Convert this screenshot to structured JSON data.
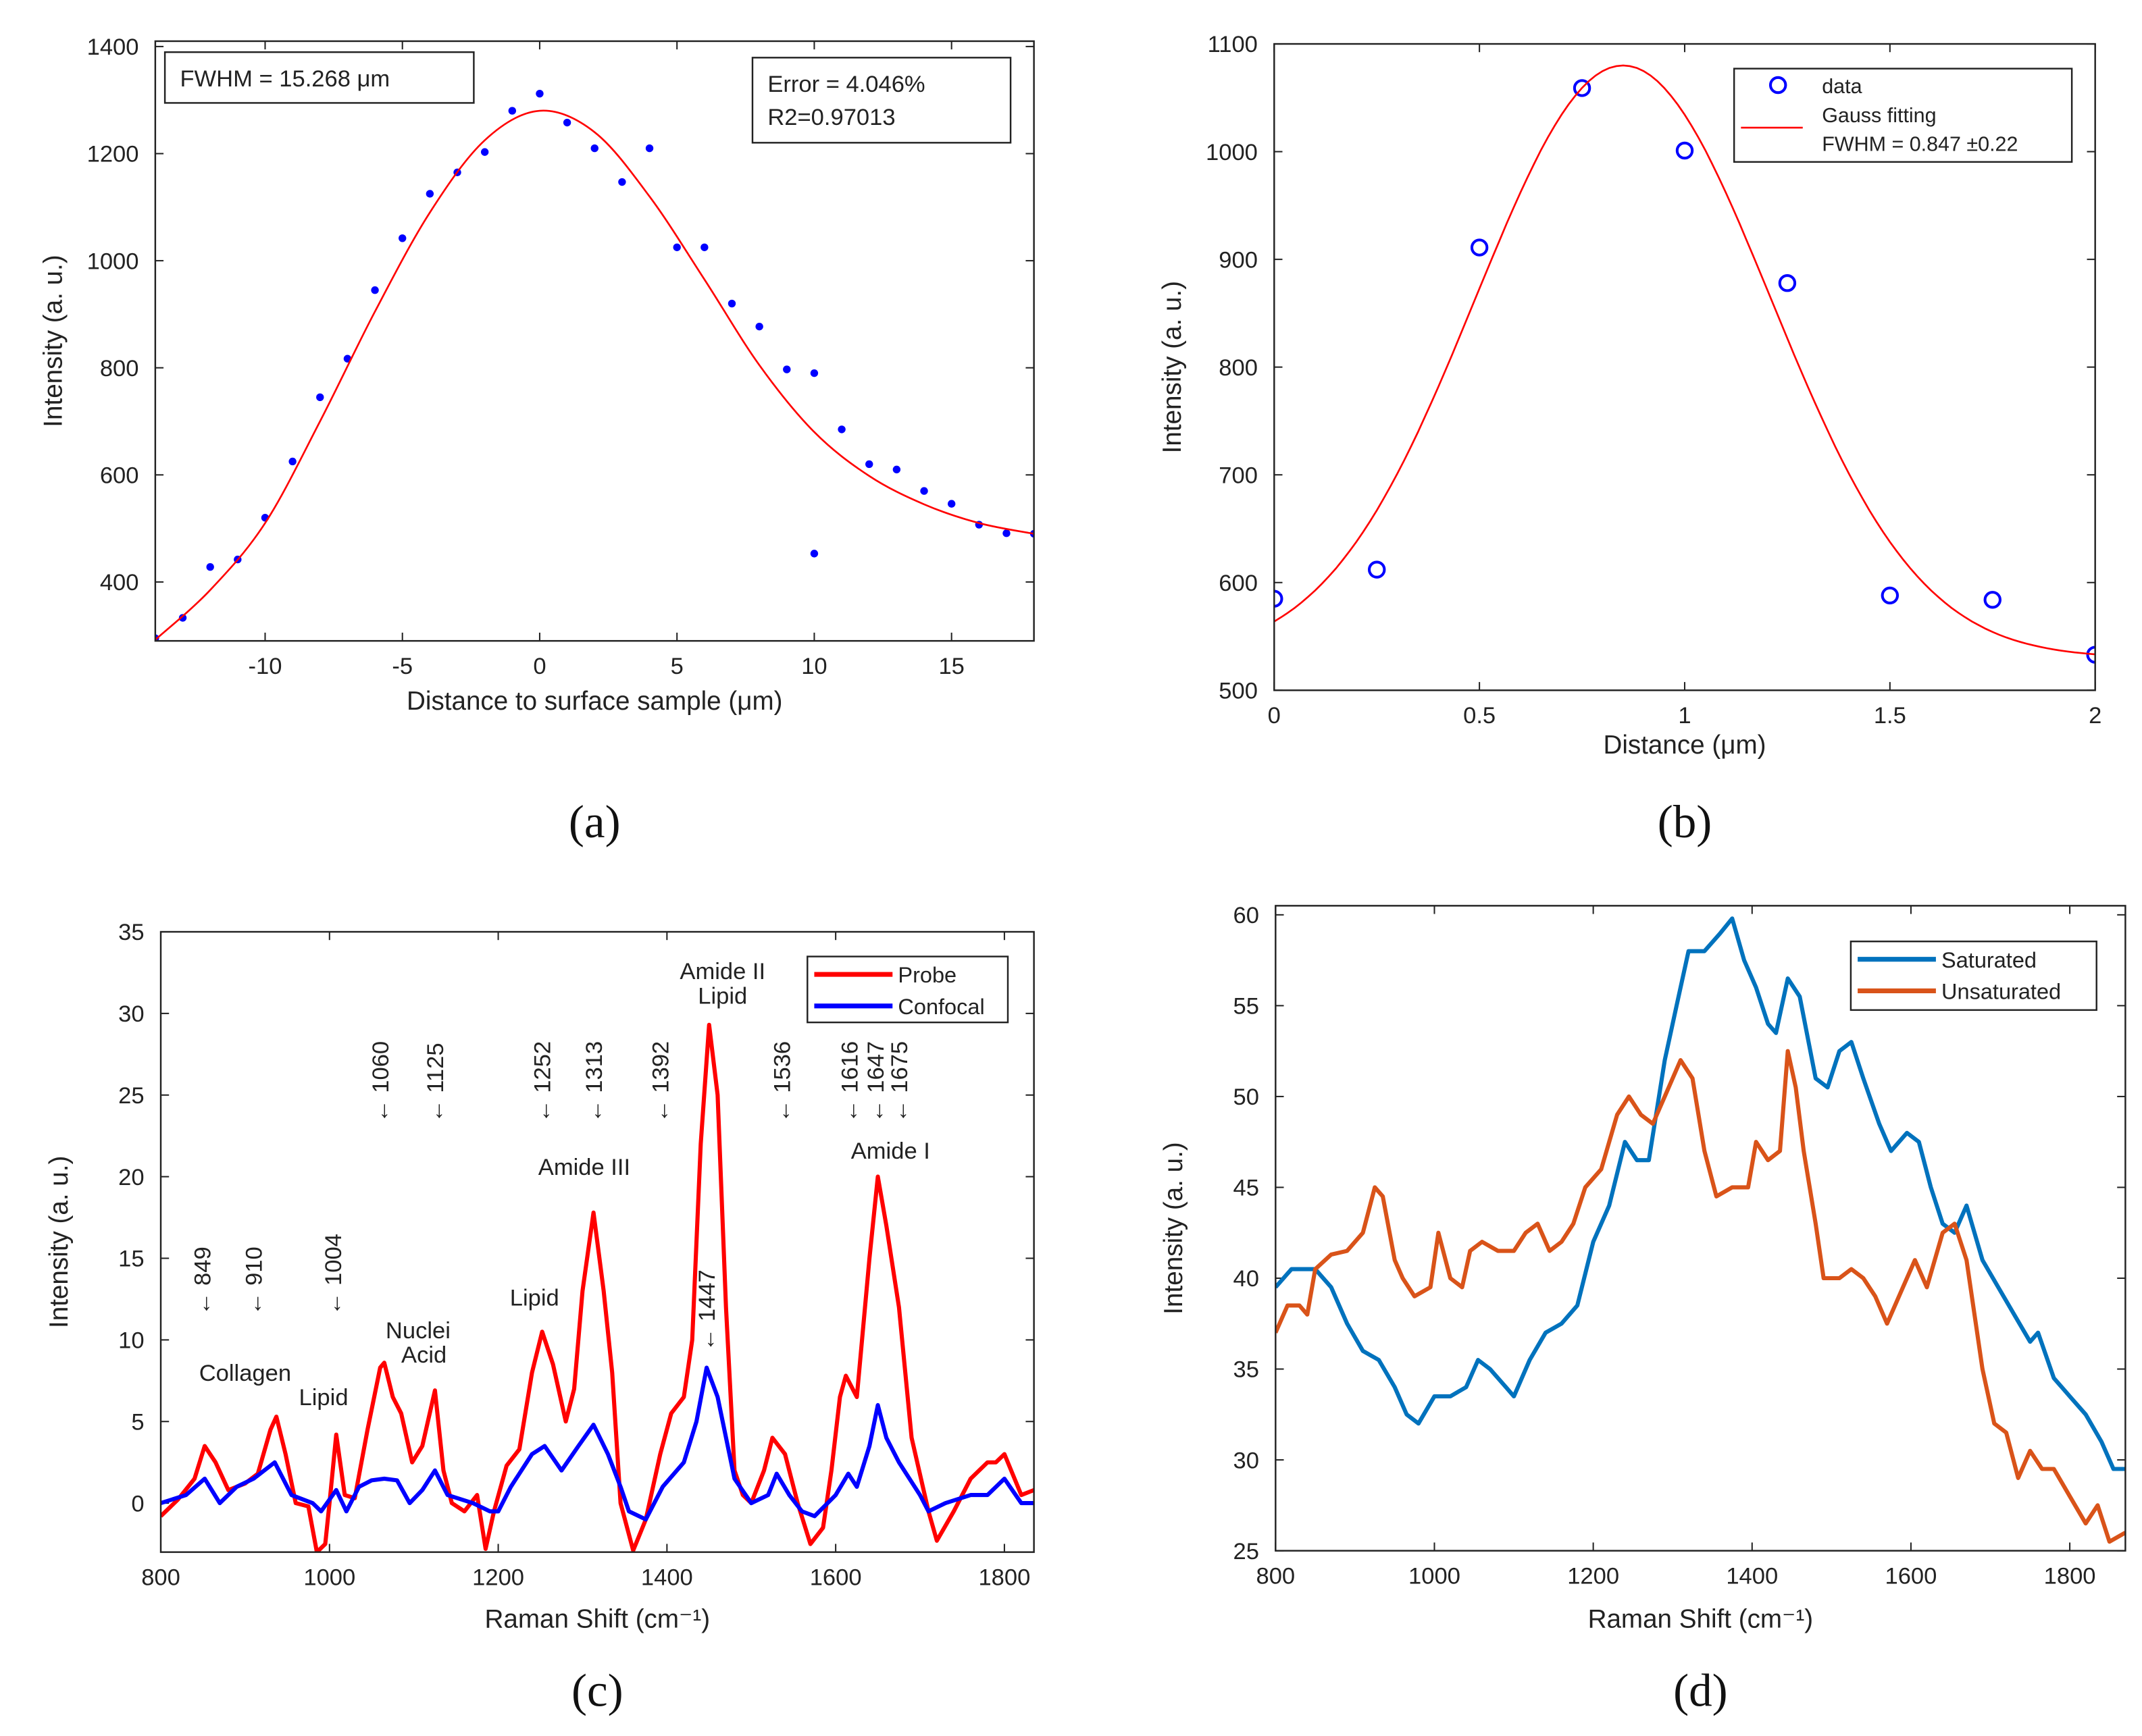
{
  "figure": {
    "panel_labels": [
      "(a)",
      "(b)",
      "(c)",
      "(d)"
    ]
  },
  "chart_data": [
    {
      "type": "scatter",
      "xlabel": "Distance to surface sample (μm)",
      "ylabel": "Intensity (a. u.)",
      "xlim": [
        -14,
        18
      ],
      "ylim": [
        290,
        1410
      ],
      "xticks": [
        -10,
        -5,
        0,
        5,
        10,
        15
      ],
      "yticks": [
        400,
        600,
        800,
        1000,
        1200,
        1400
      ],
      "series": [
        {
          "name": "data",
          "kind": "points",
          "color": "#0000ff",
          "x": [
            -14,
            -13,
            -12,
            -11,
            -10,
            -9,
            -8,
            -7,
            -6,
            -5,
            -4,
            -3,
            -2,
            -1,
            0,
            1,
            2,
            3,
            4,
            5,
            6,
            7,
            8,
            9,
            10,
            10,
            11,
            12,
            13,
            14,
            15,
            16,
            17,
            18
          ],
          "y": [
            295,
            333,
            428,
            442,
            520,
            625,
            745,
            817,
            945,
            1042,
            1125,
            1165,
            1203,
            1280,
            1312,
            1258,
            1210,
            1147,
            1210,
            1025,
            1025,
            920,
            877,
            797,
            790,
            453,
            685,
            620,
            610,
            570,
            546,
            507,
            491,
            490
          ]
        },
        {
          "name": "fit",
          "kind": "fit",
          "color": "#ff0000",
          "x": [
            -14,
            -12,
            -10,
            -8,
            -6,
            -4,
            -2,
            0,
            2,
            4,
            6,
            8,
            10,
            12,
            14,
            16,
            18
          ],
          "y": [
            292,
            385,
            510,
            700,
            905,
            1090,
            1225,
            1280,
            1240,
            1120,
            965,
            805,
            680,
            598,
            545,
            510,
            490
          ]
        }
      ],
      "annotations": [
        {
          "lines": [
            "FWHM = 15.268   μm"
          ]
        },
        {
          "lines": [
            "Error = 4.046%",
            "R2=0.97013"
          ]
        }
      ]
    },
    {
      "type": "scatter",
      "xlabel": "Distance (μm)",
      "ylabel": "Intensity (a. u.)",
      "xlim": [
        0,
        2
      ],
      "ylim": [
        500,
        1100
      ],
      "xticks": [
        0,
        0.5,
        1,
        1.5,
        2
      ],
      "yticks": [
        500,
        600,
        700,
        800,
        900,
        1000,
        1100
      ],
      "series": [
        {
          "name": "data",
          "kind": "open",
          "color": "#0000ff",
          "x": [
            0,
            0.25,
            0.5,
            0.75,
            1,
            1.25,
            1.5,
            1.75,
            2
          ],
          "y": [
            585,
            612,
            911,
            1059,
            1001,
            878,
            588,
            584,
            533
          ]
        },
        {
          "name": "Gauss fitting",
          "kind": "gauss",
          "color": "#ff0000",
          "params": {
            "baseline": 530,
            "amplitude": 550,
            "center": 0.85,
            "sigma": 0.36
          }
        }
      ],
      "legend": [
        "data",
        "Gauss fitting",
        "FWHM = 0.847   ±0.22"
      ],
      "legend_position": "top-right"
    },
    {
      "type": "line",
      "xlabel": "Raman Shift (cm⁻¹)",
      "ylabel": "Intensity (a. u.)",
      "xlim": [
        800,
        1835
      ],
      "ylim": [
        -3,
        35
      ],
      "xticks": [
        800,
        1000,
        1200,
        1400,
        1600,
        1800
      ],
      "yticks": [
        0,
        5,
        10,
        15,
        20,
        25,
        30,
        35
      ],
      "series": [
        {
          "name": "Probe",
          "kind": "line",
          "color": "#ff0000",
          "x": [
            800,
            820,
            840,
            852,
            865,
            880,
            900,
            915,
            930,
            937,
            948,
            960,
            975,
            985,
            995,
            1000,
            1008,
            1018,
            1030,
            1045,
            1060,
            1065,
            1075,
            1085,
            1098,
            1110,
            1125,
            1135,
            1145,
            1160,
            1175,
            1185,
            1195,
            1210,
            1225,
            1240,
            1252,
            1265,
            1280,
            1290,
            1300,
            1313,
            1325,
            1335,
            1345,
            1360,
            1375,
            1392,
            1405,
            1420,
            1430,
            1440,
            1450,
            1460,
            1470,
            1480,
            1490,
            1500,
            1515,
            1525,
            1540,
            1555,
            1570,
            1585,
            1595,
            1605,
            1612,
            1625,
            1640,
            1650,
            1660,
            1675,
            1690,
            1710,
            1720,
            1740,
            1760,
            1780,
            1790,
            1800,
            1820,
            1835
          ],
          "y": [
            -0.8,
            0.2,
            1.5,
            3.5,
            2.5,
            0.8,
            1.2,
            1.8,
            4.5,
            5.3,
            3,
            0,
            -0.2,
            -3,
            -2.5,
            0,
            4.2,
            0.5,
            0.3,
            4.5,
            8.3,
            8.6,
            6.5,
            5.5,
            2.5,
            3.5,
            6.9,
            2,
            0,
            -0.5,
            0.5,
            -2.8,
            -0.5,
            2.3,
            3.3,
            8,
            10.5,
            8.5,
            5,
            7,
            13,
            17.8,
            13,
            8,
            0,
            -2.9,
            -1,
            3,
            5.5,
            6.5,
            10,
            22,
            29.3,
            25,
            12,
            2,
            0.5,
            0,
            2,
            4,
            3,
            0,
            -2.5,
            -1.5,
            2,
            6.5,
            7.8,
            6.5,
            15,
            20,
            17,
            12,
            4,
            -0.5,
            -2.3,
            -0.5,
            1.5,
            2.5,
            2.5,
            3,
            0.5,
            0.8
          ]
        },
        {
          "name": "Confocal",
          "kind": "line",
          "color": "#0000ff",
          "x": [
            800,
            830,
            852,
            870,
            890,
            910,
            935,
            955,
            980,
            990,
            1008,
            1020,
            1035,
            1050,
            1065,
            1080,
            1095,
            1110,
            1125,
            1140,
            1170,
            1190,
            1200,
            1215,
            1240,
            1255,
            1275,
            1295,
            1313,
            1330,
            1345,
            1355,
            1375,
            1395,
            1420,
            1435,
            1447,
            1460,
            1480,
            1500,
            1520,
            1530,
            1545,
            1560,
            1575,
            1600,
            1615,
            1625,
            1640,
            1650,
            1660,
            1675,
            1700,
            1710,
            1730,
            1760,
            1780,
            1800,
            1820,
            1835
          ],
          "y": [
            0,
            0.5,
            1.5,
            0,
            1,
            1.5,
            2.5,
            0.5,
            0,
            -0.5,
            0.8,
            -0.5,
            1,
            1.4,
            1.5,
            1.4,
            0,
            0.8,
            2,
            0.5,
            0,
            -0.5,
            -0.5,
            1,
            3,
            3.5,
            2,
            3.5,
            4.8,
            3,
            1,
            -0.5,
            -1,
            1,
            2.5,
            5,
            8.3,
            6.5,
            1.5,
            0,
            0.5,
            1.8,
            0.5,
            -0.5,
            -0.8,
            0.5,
            1.8,
            1,
            3.5,
            6,
            4,
            2.5,
            0.5,
            -0.5,
            0,
            0.5,
            0.5,
            1.5,
            0,
            0
          ]
        }
      ],
      "legend": [
        "Probe",
        "Confocal"
      ],
      "legend_position": "top-right",
      "annotations": [
        {
          "text": "← 849",
          "x": 849,
          "y": 11.5,
          "rotated": true
        },
        {
          "text": "← 910",
          "x": 910,
          "y": 11.5,
          "rotated": true
        },
        {
          "text": "← 1004",
          "x": 1004,
          "y": 11.5,
          "rotated": true
        },
        {
          "text": "← 1060",
          "x": 1060,
          "y": 23.3,
          "rotated": true
        },
        {
          "text": "← 1125",
          "x": 1125,
          "y": 23.3,
          "rotated": true
        },
        {
          "text": "← 1252",
          "x": 1252,
          "y": 23.3,
          "rotated": true
        },
        {
          "text": "← 1313",
          "x": 1313,
          "y": 23.3,
          "rotated": true
        },
        {
          "text": "← 1392",
          "x": 1392,
          "y": 23.3,
          "rotated": true
        },
        {
          "text": "← 1536",
          "x": 1536,
          "y": 23.3,
          "rotated": true
        },
        {
          "text": "← 1616",
          "x": 1616,
          "y": 23.3,
          "rotated": true
        },
        {
          "text": "← 1647",
          "x": 1647,
          "y": 23.3,
          "rotated": true
        },
        {
          "text": "← 1675",
          "x": 1675,
          "y": 23.3,
          "rotated": true
        },
        {
          "text": "← 1447",
          "x": 1447,
          "y": 9.3,
          "rotated": true
        },
        {
          "text": "Collagen",
          "x": 900,
          "y": 7.5
        },
        {
          "text": "Lipid",
          "x": 993,
          "y": 6
        },
        {
          "text": "Nuclei",
          "x": 1105,
          "y": 10.1
        },
        {
          "text": "Acid",
          "x": 1112,
          "y": 8.6
        },
        {
          "text": "Lipid",
          "x": 1243,
          "y": 12.1
        },
        {
          "text": "Amide III",
          "x": 1302,
          "y": 20.1
        },
        {
          "text": "Amide II",
          "x": 1466,
          "y": 32.1
        },
        {
          "text": "Lipid",
          "x": 1466,
          "y": 30.6
        },
        {
          "text": "Amide I",
          "x": 1665,
          "y": 21.1
        }
      ]
    },
    {
      "type": "line",
      "xlabel": "Raman Shift (cm⁻¹)",
      "ylabel": "Intensity (a. u.)",
      "xlim": [
        800,
        1870
      ],
      "ylim": [
        25,
        60.5
      ],
      "xticks": [
        800,
        1000,
        1200,
        1400,
        1600,
        1800
      ],
      "yticks": [
        25,
        30,
        35,
        40,
        45,
        50,
        55,
        60
      ],
      "series": [
        {
          "name": "Saturated",
          "kind": "line",
          "color": "#0072bd",
          "x": [
            800,
            820,
            850,
            870,
            890,
            910,
            930,
            950,
            965,
            980,
            1000,
            1020,
            1040,
            1055,
            1070,
            1090,
            1100,
            1120,
            1140,
            1160,
            1180,
            1200,
            1220,
            1240,
            1255,
            1270,
            1290,
            1305,
            1320,
            1340,
            1360,
            1375,
            1390,
            1405,
            1420,
            1430,
            1445,
            1460,
            1480,
            1495,
            1510,
            1525,
            1540,
            1560,
            1575,
            1595,
            1610,
            1625,
            1640,
            1655,
            1670,
            1690,
            1710,
            1730,
            1750,
            1760,
            1780,
            1800,
            1820,
            1840,
            1855,
            1870
          ],
          "y": [
            39.5,
            40.5,
            40.5,
            39.5,
            37.5,
            36,
            35.5,
            34,
            32.5,
            32,
            33.5,
            33.5,
            34,
            35.5,
            35,
            34,
            33.5,
            35.5,
            37,
            37.5,
            38.5,
            42,
            44,
            47.5,
            46.5,
            46.5,
            52,
            55,
            58,
            58,
            59,
            59.8,
            57.5,
            56,
            54,
            53.5,
            56.5,
            55.5,
            51,
            50.5,
            52.5,
            53,
            51,
            48.5,
            47,
            48,
            47.5,
            45,
            43,
            42.5,
            44,
            41,
            39.5,
            38,
            36.5,
            37,
            34.5,
            33.5,
            32.5,
            31,
            29.5,
            29.5
          ]
        },
        {
          "name": "Unsaturated",
          "kind": "line",
          "color": "#d95319",
          "x": [
            800,
            815,
            830,
            840,
            850,
            870,
            890,
            910,
            925,
            935,
            950,
            960,
            975,
            995,
            1005,
            1020,
            1035,
            1045,
            1060,
            1080,
            1100,
            1115,
            1130,
            1145,
            1160,
            1175,
            1190,
            1210,
            1230,
            1245,
            1260,
            1275,
            1290,
            1310,
            1325,
            1340,
            1355,
            1375,
            1395,
            1405,
            1420,
            1435,
            1445,
            1455,
            1465,
            1480,
            1490,
            1510,
            1525,
            1540,
            1555,
            1570,
            1590,
            1605,
            1620,
            1640,
            1655,
            1670,
            1690,
            1705,
            1720,
            1735,
            1750,
            1765,
            1780,
            1800,
            1820,
            1835,
            1850,
            1870
          ],
          "y": [
            37,
            38.5,
            38.5,
            38,
            40.5,
            41.3,
            41.5,
            42.5,
            45,
            44.5,
            41,
            40,
            39,
            39.5,
            42.5,
            40,
            39.5,
            41.5,
            42,
            41.5,
            41.5,
            42.5,
            43,
            41.5,
            42,
            43,
            45,
            46,
            49,
            50,
            49,
            48.5,
            50,
            52,
            51,
            47,
            44.5,
            45,
            45,
            47.5,
            46.5,
            47,
            52.5,
            50.5,
            47,
            43,
            40,
            40,
            40.5,
            40,
            39,
            37.5,
            39.5,
            41,
            39.5,
            42.5,
            43,
            41,
            35,
            32,
            31.5,
            29,
            30.5,
            29.5,
            29.5,
            28,
            26.5,
            27.5,
            25.5,
            26
          ]
        }
      ],
      "legend": [
        "Saturated",
        "Unsaturated"
      ],
      "legend_position": "top-right"
    }
  ]
}
